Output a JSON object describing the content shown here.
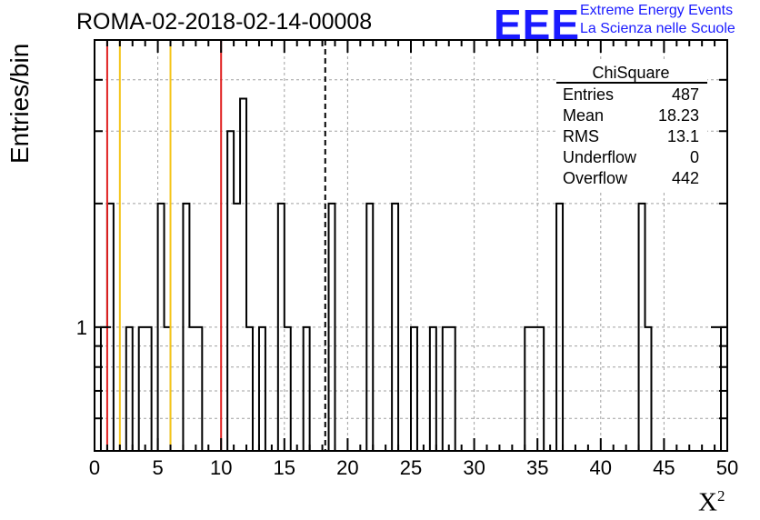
{
  "header": {
    "title": "ROMA-02-2018-02-14-00008",
    "logo_text": "EEE",
    "logo_line1": "Extreme Energy Events",
    "logo_line2": "La Scienza nelle Scuole"
  },
  "stats": {
    "title": "ChiSquare",
    "rows": [
      {
        "label": "Entries",
        "value": "487"
      },
      {
        "label": "Mean",
        "value": "18.23"
      },
      {
        "label": "RMS",
        "value": "13.1"
      },
      {
        "label": "Underflow",
        "value": "0"
      },
      {
        "label": "Overflow",
        "value": "442"
      }
    ]
  },
  "chart_data": {
    "type": "bar",
    "histogram": true,
    "title": "ROMA-02-2018-02-14-00008",
    "xlabel": "X",
    "xlabel_sup": "2",
    "ylabel": "Entries/bin",
    "xlim": [
      0,
      50
    ],
    "ylim": [
      0.5,
      5.0
    ],
    "yscale": "log",
    "bin_width": 0.5,
    "xticks": [
      0,
      5,
      10,
      15,
      20,
      25,
      30,
      35,
      40,
      45,
      50
    ],
    "yticks_labeled": [
      1
    ],
    "grid": true,
    "bins": [
      {
        "x": 0.5,
        "y": 1
      },
      {
        "x": 1.0,
        "y": 2
      },
      {
        "x": 2.5,
        "y": 1
      },
      {
        "x": 3.5,
        "y": 1
      },
      {
        "x": 4.0,
        "y": 1
      },
      {
        "x": 5.0,
        "y": 2
      },
      {
        "x": 5.5,
        "y": 1
      },
      {
        "x": 7.0,
        "y": 2
      },
      {
        "x": 7.5,
        "y": 1
      },
      {
        "x": 8.0,
        "y": 1
      },
      {
        "x": 10.5,
        "y": 3
      },
      {
        "x": 11.0,
        "y": 2
      },
      {
        "x": 11.5,
        "y": 3.6
      },
      {
        "x": 12.0,
        "y": 1
      },
      {
        "x": 13.0,
        "y": 1
      },
      {
        "x": 14.5,
        "y": 2
      },
      {
        "x": 15.0,
        "y": 1
      },
      {
        "x": 16.5,
        "y": 1
      },
      {
        "x": 18.5,
        "y": 2
      },
      {
        "x": 21.5,
        "y": 2
      },
      {
        "x": 23.5,
        "y": 2
      },
      {
        "x": 25.0,
        "y": 1
      },
      {
        "x": 26.5,
        "y": 1
      },
      {
        "x": 27.5,
        "y": 1
      },
      {
        "x": 28.0,
        "y": 1
      },
      {
        "x": 34.0,
        "y": 1
      },
      {
        "x": 34.5,
        "y": 1
      },
      {
        "x": 35.0,
        "y": 1
      },
      {
        "x": 36.5,
        "y": 2
      },
      {
        "x": 43.0,
        "y": 2
      },
      {
        "x": 43.5,
        "y": 1
      },
      {
        "x": 49.5,
        "y": 1
      }
    ],
    "vertical_lines": [
      {
        "x": 1.0,
        "color": "#e02020",
        "style": "solid"
      },
      {
        "x": 2.0,
        "color": "#f5c518",
        "style": "solid"
      },
      {
        "x": 6.0,
        "color": "#f5c518",
        "style": "solid"
      },
      {
        "x": 10.0,
        "color": "#e02020",
        "style": "solid"
      },
      {
        "x": 18.23,
        "color": "#000000",
        "style": "dashed"
      }
    ]
  }
}
